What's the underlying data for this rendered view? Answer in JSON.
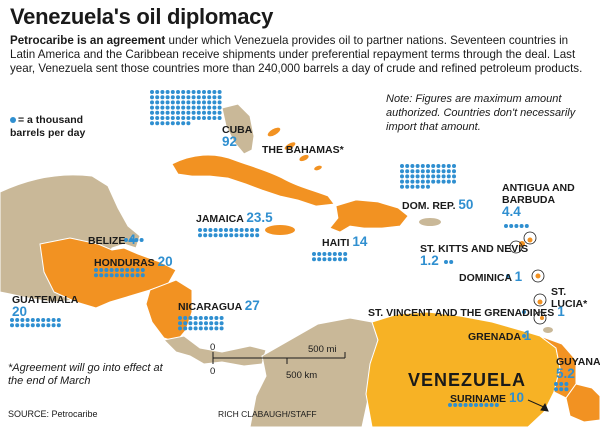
{
  "title": "Venezuela's oil diplomacy",
  "intro_bold": "Petrocaribe is an agreement",
  "intro_rest": " under which Venezuela provides oil to partner nations. Seventeen countries in Latin America and the Caribbean receive shipments under preferential repayment terms through the deal. Last year, Venezuela sent those countries more than 240,000 barrels a day of crude and refined petroleum products.",
  "legend": {
    "line1": "= a thousand",
    "line2": "barrels per day"
  },
  "note": "Note: Figures are maximum amount authorized. Countries don't necessarily import that amount.",
  "footnote": "*Agreement will go into effect at the end of March",
  "source": "SOURCE: Petrocaribe",
  "credit": "RICH CLABAUGH/STAFF",
  "main_country": "VENEZUELA",
  "scale": {
    "mi": "500 mi",
    "km": "500 km",
    "zero_top": "0",
    "zero_bottom": "0"
  },
  "colors": {
    "partner": "#f29222",
    "venezuela": "#f7b225",
    "other_land": "#c9b898",
    "sea": "#ffffff",
    "dot": "#2f8fd0"
  },
  "partners": [
    {
      "id": "cuba",
      "name": "CUBA",
      "value": 92,
      "value_label": "92"
    },
    {
      "id": "bahamas",
      "name": "THE BAHAMAS*",
      "value": null,
      "value_label": ""
    },
    {
      "id": "jamaica",
      "name": "JAMAICA",
      "value": 23.5,
      "value_label": "23.5"
    },
    {
      "id": "haiti",
      "name": "HAITI",
      "value": 14,
      "value_label": "14"
    },
    {
      "id": "domrep",
      "name": "DOM. REP.",
      "value": 50,
      "value_label": "50"
    },
    {
      "id": "antigua",
      "name": "ANTIGUA AND BARBUDA",
      "name_line1": "ANTIGUA AND",
      "name_line2": "BARBUDA",
      "value": 4.4,
      "value_label": "4.4"
    },
    {
      "id": "stkitts",
      "name": "ST. KITTS AND NEVIS",
      "value": 1.2,
      "value_label": "1.2"
    },
    {
      "id": "dominica",
      "name": "DOMINICA",
      "value": 1,
      "value_label": "1"
    },
    {
      "id": "stlucia",
      "name": "ST. LUCIA*",
      "name_line1": "ST.",
      "name_line2": "LUCIA*",
      "value": null,
      "value_label": ""
    },
    {
      "id": "stvincent",
      "name": "ST. VINCENT AND THE GRENADINES",
      "value": 1,
      "value_label": "1"
    },
    {
      "id": "grenada",
      "name": "GRENADA",
      "value": 1,
      "value_label": "1"
    },
    {
      "id": "belize",
      "name": "BELIZE",
      "value": 4,
      "value_label": "4"
    },
    {
      "id": "honduras",
      "name": "HONDURAS",
      "value": 20,
      "value_label": "20"
    },
    {
      "id": "guatemala",
      "name": "GUATEMALA",
      "value": 20,
      "value_label": "20"
    },
    {
      "id": "nicaragua",
      "name": "NICARAGUA",
      "value": 27,
      "value_label": "27"
    },
    {
      "id": "guyana",
      "name": "GUYANA",
      "value": 5.2,
      "value_label": "5.2"
    },
    {
      "id": "suriname",
      "name": "SURINAME",
      "value": 10,
      "value_label": "10"
    }
  ]
}
